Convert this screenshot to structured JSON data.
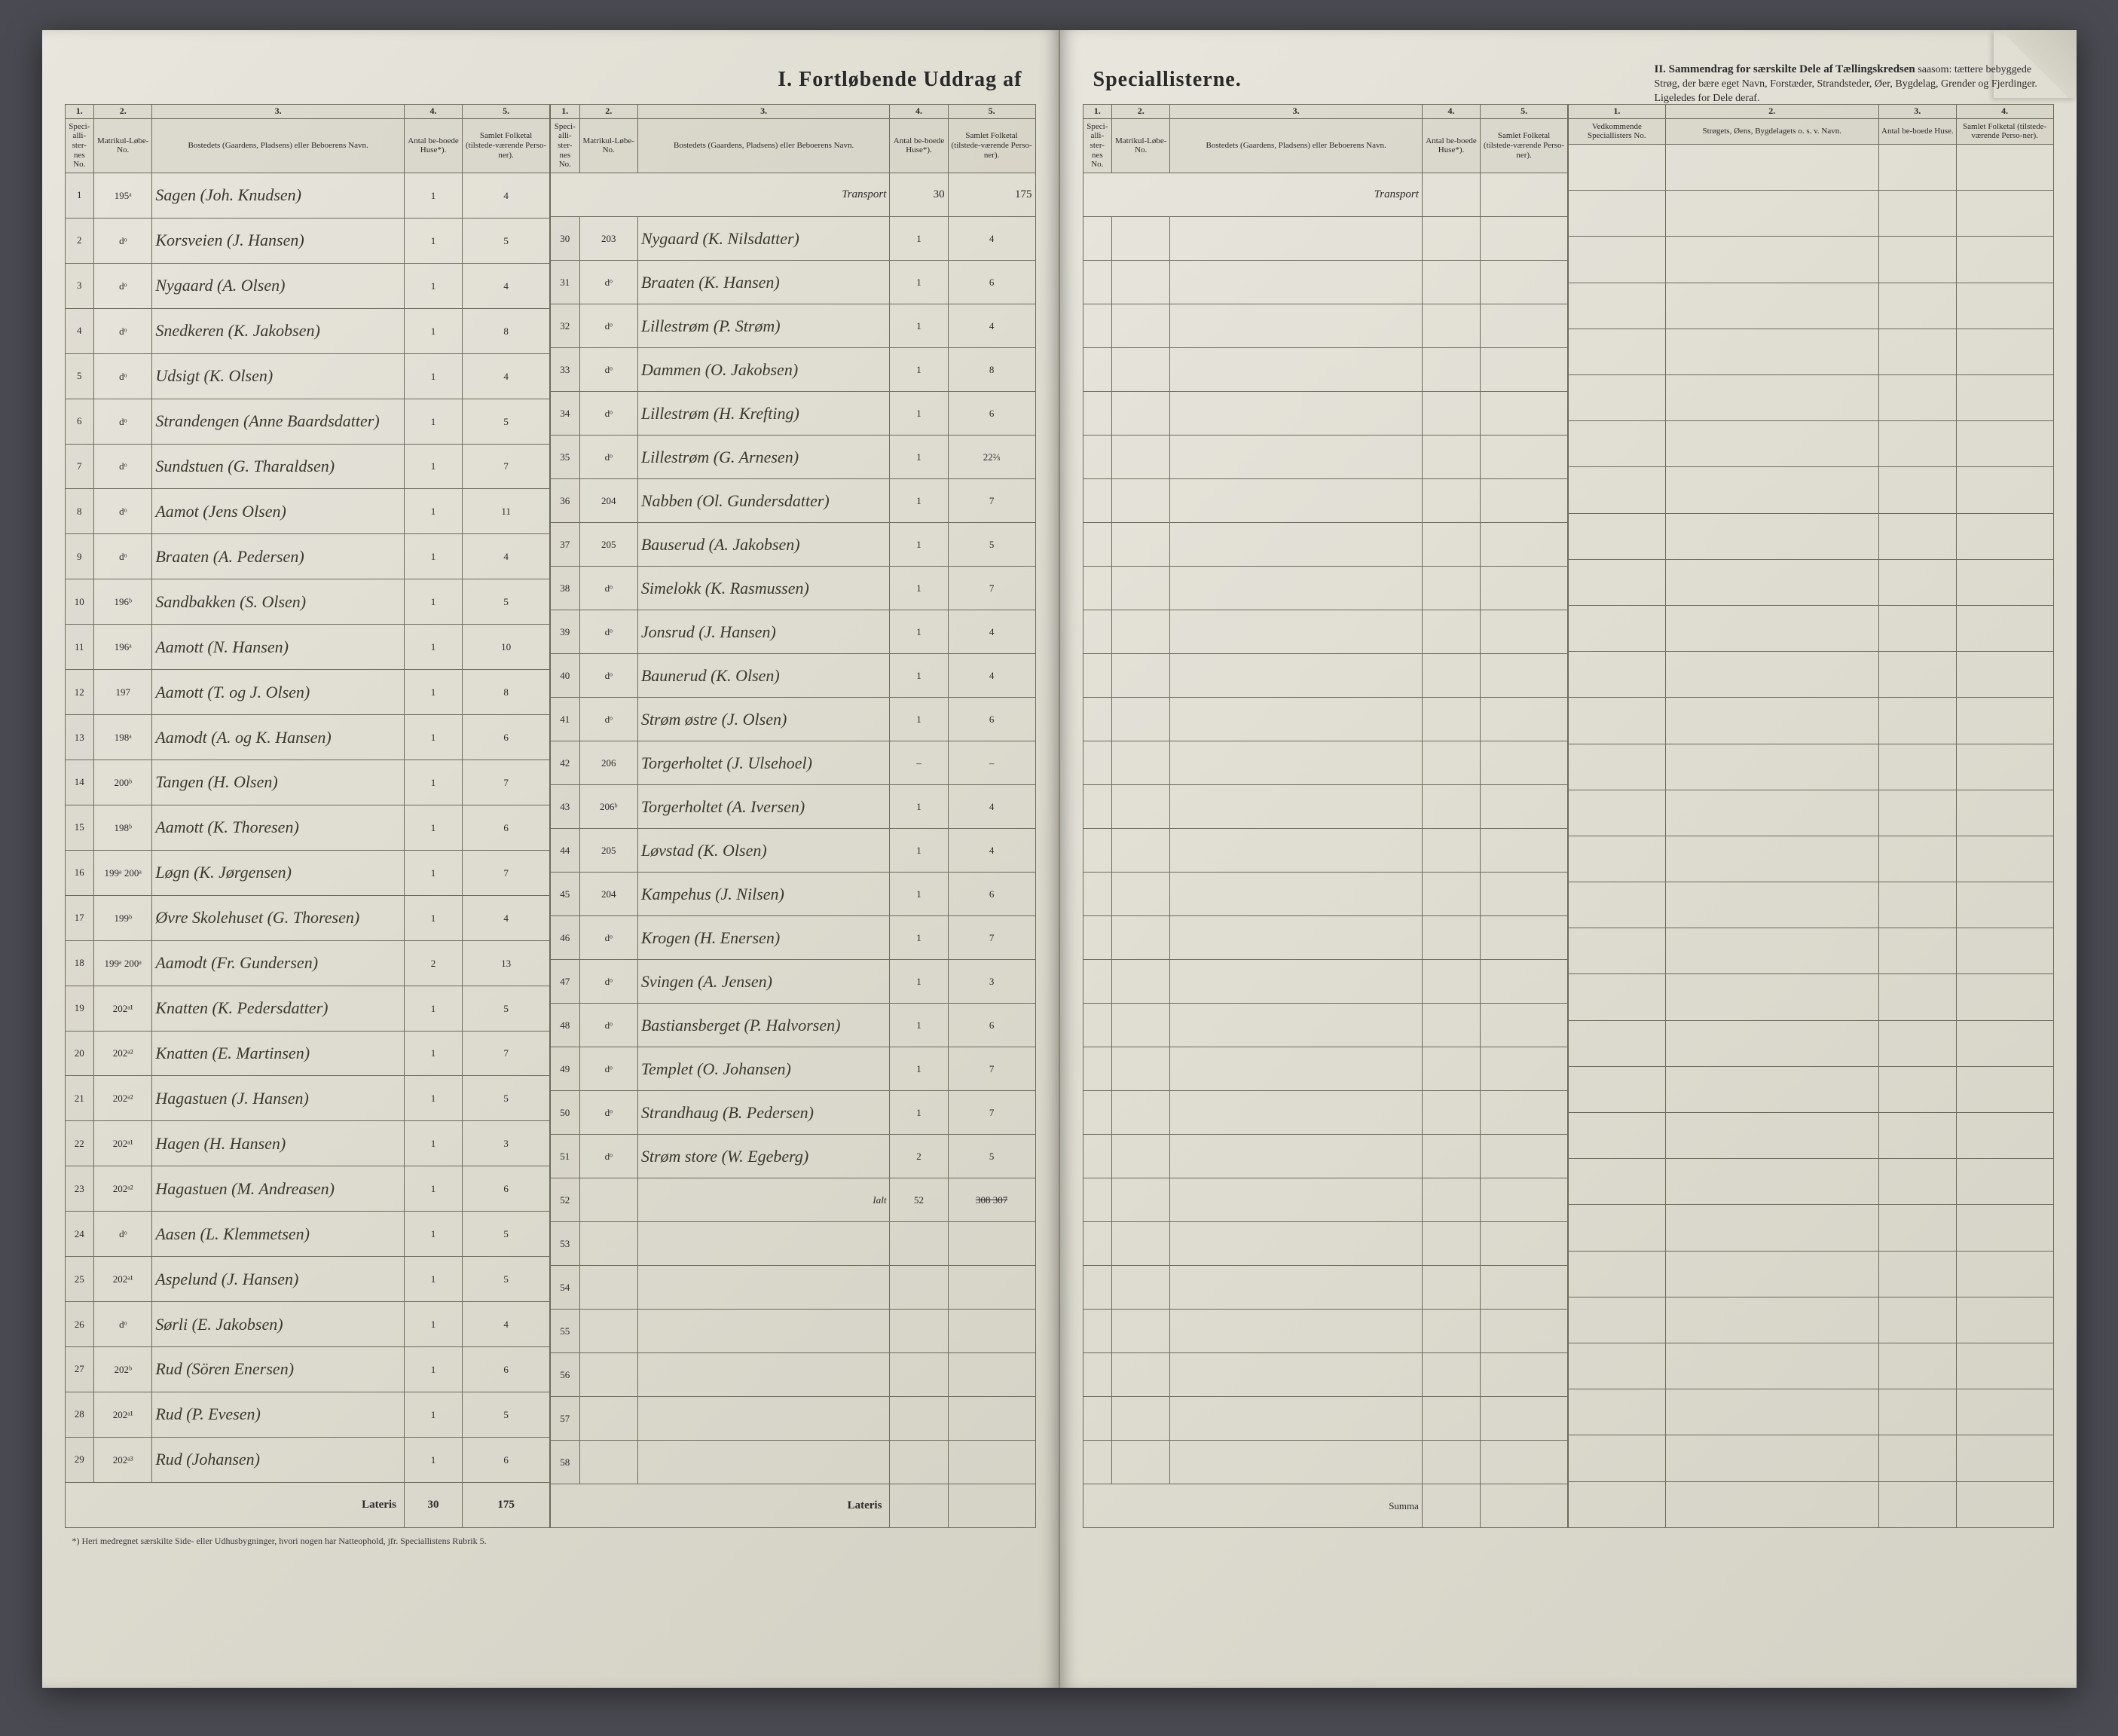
{
  "document": {
    "title_left": "I.  Fortløbende Uddrag af",
    "title_right_cont": "Speciallisterne.",
    "section2_heading": "II.  Sammendrag for særskilte Dele af Tællingskredsen",
    "section2_sub": "saasom: tættere bebyggede Strøg, der bære eget Navn, Forstæder, Strandsteder, Øer, Bygdelag, Grender og Fjerdinger. Ligeledes for Dele deraf.",
    "footnote": "*) Heri medregnet særskilte Side- eller Udhusbygninger, hvori nogen har Natteophold, jfr. Speciallistens Rubrik 5."
  },
  "columns": {
    "nums": [
      "1.",
      "2.",
      "3.",
      "4.",
      "5."
    ],
    "h1": "Speci-alli-ster-nes No.",
    "h2": "Matrikul-Løbe-No.",
    "h3": "Bostedets (Gaardens, Pladsens) eller Beboerens Navn.",
    "h4": "Antal be-boede Huse*).",
    "h5": "Samlet Folketal (tilstede-værende Perso-ner).",
    "sec2_nums": [
      "1.",
      "2.",
      "3.",
      "4."
    ],
    "sec2_h1": "Vedkommende Speciallisters No.",
    "sec2_h2": "Strøgets, Øens, Bygdelagets o. s. v. Navn.",
    "sec2_h3": "Antal be-boede Huse.",
    "sec2_h4": "Samlet Folketal (tilstede-værende Perso-ner)."
  },
  "labels": {
    "transport": "Transport",
    "lateris": "Lateris",
    "summa": "Summa",
    "ialt": "Ialt"
  },
  "left_block_a": [
    {
      "no": "1",
      "mat": "195ᵃ",
      "name": "Sagen (Joh. Knudsen)",
      "huse": "1",
      "folk": "4"
    },
    {
      "no": "2",
      "mat": "dᵒ",
      "name": "Korsveien (J. Hansen)",
      "huse": "1",
      "folk": "5"
    },
    {
      "no": "3",
      "mat": "dᵒ",
      "name": "Nygaard (A. Olsen)",
      "huse": "1",
      "folk": "4"
    },
    {
      "no": "4",
      "mat": "dᵒ",
      "name": "Snedkeren (K. Jakobsen)",
      "huse": "1",
      "folk": "8"
    },
    {
      "no": "5",
      "mat": "dᵒ",
      "name": "Udsigt (K. Olsen)",
      "huse": "1",
      "folk": "4"
    },
    {
      "no": "6",
      "mat": "dᵒ",
      "name": "Strandengen (Anne Baardsdatter)",
      "huse": "1",
      "folk": "5"
    },
    {
      "no": "7",
      "mat": "dᵒ",
      "name": "Sundstuen (G. Tharaldsen)",
      "huse": "1",
      "folk": "7"
    },
    {
      "no": "8",
      "mat": "dᵒ",
      "name": "Aamot (Jens Olsen)",
      "huse": "1",
      "folk": "11"
    },
    {
      "no": "9",
      "mat": "dᵒ",
      "name": "Braaten (A. Pedersen)",
      "huse": "1",
      "folk": "4"
    },
    {
      "no": "10",
      "mat": "196ᵇ",
      "name": "Sandbakken (S. Olsen)",
      "huse": "1",
      "folk": "5"
    },
    {
      "no": "11",
      "mat": "196ᵃ",
      "name": "Aamott (N. Hansen)",
      "huse": "1",
      "folk": "10"
    },
    {
      "no": "12",
      "mat": "197",
      "name": "Aamott (T. og J. Olsen)",
      "huse": "1",
      "folk": "8"
    },
    {
      "no": "13",
      "mat": "198ᵃ",
      "name": "Aamodt (A. og K. Hansen)",
      "huse": "1",
      "folk": "6"
    },
    {
      "no": "14",
      "mat": "200ᵇ",
      "name": "Tangen (H. Olsen)",
      "huse": "1",
      "folk": "7"
    },
    {
      "no": "15",
      "mat": "198ᵇ",
      "name": "Aamott (K. Thoresen)",
      "huse": "1",
      "folk": "6"
    },
    {
      "no": "16",
      "mat": "199ᵃ 200ᵃ",
      "name": "Løgn (K. Jørgensen)",
      "huse": "1",
      "folk": "7"
    },
    {
      "no": "17",
      "mat": "199ᵇ",
      "name": "Øvre Skolehuset (G. Thoresen)",
      "huse": "1",
      "folk": "4"
    },
    {
      "no": "18",
      "mat": "199ᵃ 200ᵃ",
      "name": "Aamodt (Fr. Gundersen)",
      "huse": "2",
      "folk": "13"
    },
    {
      "no": "19",
      "mat": "202ᵃ¹",
      "name": "Knatten (K. Pedersdatter)",
      "huse": "1",
      "folk": "5"
    },
    {
      "no": "20",
      "mat": "202ᵃ²",
      "name": "Knatten (E. Martinsen)",
      "huse": "1",
      "folk": "7"
    },
    {
      "no": "21",
      "mat": "202ᵃ²",
      "name": "Hagastuen (J. Hansen)",
      "huse": "1",
      "folk": "5"
    },
    {
      "no": "22",
      "mat": "202ᵃ¹",
      "name": "Hagen (H. Hansen)",
      "huse": "1",
      "folk": "3"
    },
    {
      "no": "23",
      "mat": "202ᵃ²",
      "name": "Hagastuen (M. Andreasen)",
      "huse": "1",
      "folk": "6"
    },
    {
      "no": "24",
      "mat": "dᵒ",
      "name": "Aasen (L. Klemmetsen)",
      "huse": "1",
      "folk": "5"
    },
    {
      "no": "25",
      "mat": "202ᵃ¹",
      "name": "Aspelund (J. Hansen)",
      "huse": "1",
      "folk": "5"
    },
    {
      "no": "26",
      "mat": "dᵒ",
      "name": "Sørli (E. Jakobsen)",
      "huse": "1",
      "folk": "4"
    },
    {
      "no": "27",
      "mat": "202ᵇ",
      "name": "Rud (Sören Enersen)",
      "huse": "1",
      "folk": "6"
    },
    {
      "no": "28",
      "mat": "202ᵃ¹",
      "name": "Rud (P. Evesen)",
      "huse": "1",
      "folk": "5"
    },
    {
      "no": "29",
      "mat": "202ᵃ³",
      "name": "Rud (Johansen)",
      "huse": "1",
      "folk": "6"
    }
  ],
  "left_lateris": {
    "huse": "30",
    "folk": "175"
  },
  "left_block_b_transport": {
    "huse": "30",
    "folk": "175"
  },
  "left_block_b": [
    {
      "no": "30",
      "mat": "203",
      "name": "Nygaard (K. Nilsdatter)",
      "huse": "1",
      "folk": "4"
    },
    {
      "no": "31",
      "mat": "dᵒ",
      "name": "Braaten (K. Hansen)",
      "huse": "1",
      "folk": "6"
    },
    {
      "no": "32",
      "mat": "dᵒ",
      "name": "Lillestrøm (P. Strøm)",
      "huse": "1",
      "folk": "4"
    },
    {
      "no": "33",
      "mat": "dᵒ",
      "name": "Dammen (O. Jakobsen)",
      "huse": "1",
      "folk": "8"
    },
    {
      "no": "34",
      "mat": "dᵒ",
      "name": "Lillestrøm (H. Krefting)",
      "huse": "1",
      "folk": "6"
    },
    {
      "no": "35",
      "mat": "dᵒ",
      "name": "Lillestrøm (G. Arnesen)",
      "huse": "1",
      "folk": "22⅔"
    },
    {
      "no": "36",
      "mat": "204",
      "name": "Nabben (Ol. Gundersdatter)",
      "huse": "1",
      "folk": "7"
    },
    {
      "no": "37",
      "mat": "205",
      "name": "Bauserud (A. Jakobsen)",
      "huse": "1",
      "folk": "5"
    },
    {
      "no": "38",
      "mat": "dᵒ",
      "name": "Simelokk (K. Rasmussen)",
      "huse": "1",
      "folk": "7"
    },
    {
      "no": "39",
      "mat": "dᵒ",
      "name": "Jonsrud (J. Hansen)",
      "huse": "1",
      "folk": "4"
    },
    {
      "no": "40",
      "mat": "dᵒ",
      "name": "Baunerud (K. Olsen)",
      "huse": "1",
      "folk": "4"
    },
    {
      "no": "41",
      "mat": "dᵒ",
      "name": "Strøm østre (J. Olsen)",
      "huse": "1",
      "folk": "6"
    },
    {
      "no": "42",
      "mat": "206",
      "name": "Torgerholtet (J. Ulsehoel)",
      "huse": "–",
      "folk": "–"
    },
    {
      "no": "43",
      "mat": "206ᵇ",
      "name": "Torgerholtet (A. Iversen)",
      "huse": "1",
      "folk": "4"
    },
    {
      "no": "44",
      "mat": "205",
      "name": "Løvstad (K. Olsen)",
      "huse": "1",
      "folk": "4"
    },
    {
      "no": "45",
      "mat": "204",
      "name": "Kampehus (J. Nilsen)",
      "huse": "1",
      "folk": "6"
    },
    {
      "no": "46",
      "mat": "dᵒ",
      "name": "Krogen (H. Enersen)",
      "huse": "1",
      "folk": "7"
    },
    {
      "no": "47",
      "mat": "dᵒ",
      "name": "Svingen (A. Jensen)",
      "huse": "1",
      "folk": "3"
    },
    {
      "no": "48",
      "mat": "dᵒ",
      "name": "Bastiansberget (P. Halvorsen)",
      "huse": "1",
      "folk": "6"
    },
    {
      "no": "49",
      "mat": "dᵒ",
      "name": "Templet (O. Johansen)",
      "huse": "1",
      "folk": "7"
    },
    {
      "no": "50",
      "mat": "dᵒ",
      "name": "Strandhaug (B. Pedersen)",
      "huse": "1",
      "folk": "7"
    },
    {
      "no": "51",
      "mat": "dᵒ",
      "name": "Strøm store (W. Egeberg)",
      "huse": "2",
      "folk": "5"
    }
  ],
  "left_block_b_ialt": {
    "huse": "52",
    "folk": "308 307"
  },
  "empty_rows_b": [
    52,
    53,
    54,
    55,
    56,
    57,
    58
  ],
  "right_block_rows": 29,
  "colors": {
    "paper": "#e8e6dd",
    "ink": "#2a2a2a",
    "rule": "#6e6a5c",
    "hand": "#3a382e"
  }
}
